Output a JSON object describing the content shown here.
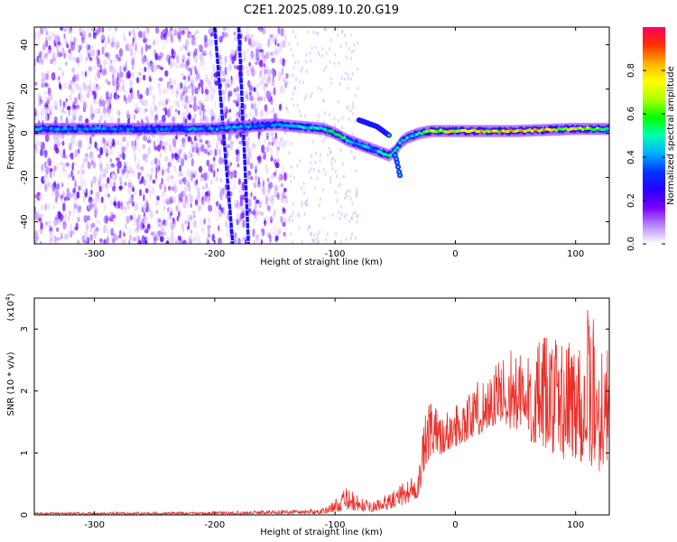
{
  "title": "C2E1.2025.089.10.20.G19",
  "chart_data": [
    {
      "type": "heatmap",
      "xlabel": "Height of straight line (km)",
      "ylabel": "Frequency (Hz)",
      "xlim": [
        -350,
        128
      ],
      "ylim": [
        -50,
        48
      ],
      "xticks": [
        -300,
        -200,
        -100,
        0,
        100
      ],
      "yticks": [
        -40,
        -20,
        0,
        20,
        40
      ],
      "colorbar": {
        "label": "Normalized spectral amplitude",
        "range": [
          0.0,
          1.0
        ],
        "ticks": [
          0.0,
          0.2,
          0.4,
          0.6,
          0.8
        ],
        "colormap": [
          "#ffffff",
          "#b98cff",
          "#7a00ff",
          "#2a00ff",
          "#0033ff",
          "#00b0ff",
          "#00ffb0",
          "#00ff00",
          "#b0ff00",
          "#ffff00",
          "#ffb000",
          "#ff3000",
          "#ff0060"
        ]
      },
      "ridge": {
        "x": [
          -350,
          -300,
          -250,
          -200,
          -150,
          -130,
          -110,
          -100,
          -90,
          -80,
          -70,
          -60,
          -55,
          -50,
          -45,
          -40,
          -30,
          -20,
          0,
          50,
          100,
          128
        ],
        "y": [
          2,
          2,
          2,
          2,
          4,
          3,
          2,
          0,
          -3,
          -5,
          -7,
          -9,
          -10,
          -8,
          -4,
          -2,
          0,
          1,
          1,
          1,
          2,
          2
        ],
        "amplitude": [
          0.45,
          0.45,
          0.4,
          0.45,
          0.45,
          0.5,
          0.55,
          0.6,
          0.55,
          0.5,
          0.5,
          0.55,
          0.6,
          0.55,
          0.5,
          0.5,
          0.6,
          0.75,
          0.85,
          0.9,
          0.85,
          0.6
        ]
      },
      "branch": {
        "x": [
          -80,
          -75,
          -70,
          -65,
          -60,
          -55
        ],
        "y": [
          6,
          5,
          4,
          3,
          1,
          -1
        ]
      },
      "tail": {
        "x": [
          -50,
          -48,
          -47,
          -46
        ],
        "y": [
          -10,
          -14,
          -17,
          -19
        ]
      },
      "streaks": [
        {
          "x": [
            -200,
            -185
          ],
          "y": [
            48,
            -50
          ]
        },
        {
          "x": [
            -180,
            -172
          ],
          "y": [
            48,
            -50
          ]
        }
      ]
    },
    {
      "type": "line",
      "xlabel": "Height of straight line (km)",
      "ylabel": "SNR (10 * v/v)",
      "yscale_label": "(x10",
      "yscale_exp": "4",
      "xlim": [
        -350,
        128
      ],
      "ylim": [
        0,
        3.5
      ],
      "xticks": [
        -300,
        -200,
        -100,
        0,
        100
      ],
      "yticks": [
        0,
        1,
        2,
        3
      ],
      "line_color": "#e8302a",
      "envelope": {
        "x": [
          -350,
          -200,
          -110,
          -100,
          -90,
          -80,
          -70,
          -60,
          -50,
          -40,
          -30,
          -28,
          -25,
          -20,
          -10,
          0,
          10,
          20,
          30,
          40,
          50,
          60,
          70,
          80,
          90,
          100,
          110,
          120,
          128
        ],
        "low": [
          0.01,
          0.01,
          0.02,
          0.05,
          0.08,
          0.06,
          0.05,
          0.08,
          0.12,
          0.18,
          0.3,
          0.5,
          0.8,
          0.9,
          1.0,
          1.1,
          1.2,
          1.3,
          1.4,
          1.5,
          1.3,
          1.2,
          1.1,
          1.0,
          0.9,
          0.9,
          0.8,
          0.7,
          0.9
        ],
        "high": [
          0.04,
          0.05,
          0.1,
          0.25,
          0.45,
          0.3,
          0.2,
          0.3,
          0.4,
          0.6,
          0.8,
          1.2,
          1.6,
          1.9,
          1.6,
          1.8,
          2.0,
          2.2,
          2.4,
          2.6,
          2.8,
          2.7,
          2.8,
          3.0,
          2.9,
          3.2,
          3.4,
          3.1,
          2.6
        ]
      }
    }
  ]
}
